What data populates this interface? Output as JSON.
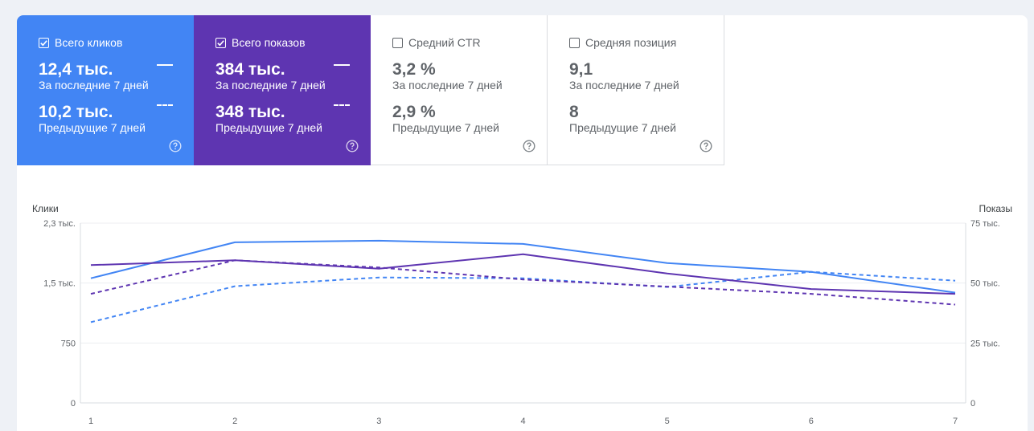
{
  "metrics": [
    {
      "id": "clicks",
      "label": "Всего кликов",
      "checked": true,
      "current": "12,4 тыс.",
      "current_period": "За последние 7 дней",
      "previous": "10,2 тыс.",
      "previous_period": "Предыдущие 7 дней",
      "color": "#4285f4"
    },
    {
      "id": "impressions",
      "label": "Всего показов",
      "checked": true,
      "current": "384 тыс.",
      "current_period": "За последние 7 дней",
      "previous": "348 тыс.",
      "previous_period": "Предыдущие 7 дней",
      "color": "#5e35b1"
    },
    {
      "id": "ctr",
      "label": "Средний CTR",
      "checked": false,
      "current": "3,2 %",
      "current_period": "За последние 7 дней",
      "previous": "2,9 %",
      "previous_period": "Предыдущие 7 дней"
    },
    {
      "id": "position",
      "label": "Средняя позиция",
      "checked": false,
      "current": "9,1",
      "current_period": "За последние 7 дней",
      "previous": "8",
      "previous_period": "Предыдущие 7 дней"
    }
  ],
  "chart_data": {
    "type": "line",
    "x": [
      1,
      2,
      3,
      4,
      5,
      6,
      7
    ],
    "left_axis": {
      "label": "Клики",
      "ticks": [
        "0",
        "750",
        "1,5 тыс.",
        "2,3 тыс."
      ],
      "ylim": [
        0,
        2250
      ]
    },
    "right_axis": {
      "label": "Показы",
      "ticks": [
        "0",
        "25 тыс.",
        "50 тыс.",
        "75 тыс."
      ],
      "ylim": [
        0,
        75000
      ]
    },
    "series": [
      {
        "axis": "left",
        "style": "solid",
        "color": "#4285f4",
        "values": [
          1560,
          2010,
          2030,
          1990,
          1750,
          1640,
          1380
        ]
      },
      {
        "axis": "left",
        "style": "dashed",
        "color": "#4285f4",
        "values": [
          1010,
          1460,
          1570,
          1560,
          1450,
          1640,
          1530
        ]
      },
      {
        "axis": "right",
        "style": "solid",
        "color": "#5e35b1",
        "values": [
          57500,
          59500,
          56000,
          62000,
          54000,
          47500,
          45500
        ]
      },
      {
        "axis": "right",
        "style": "dashed",
        "color": "#5e35b1",
        "values": [
          45500,
          59500,
          56500,
          51500,
          48500,
          45500,
          41000
        ]
      }
    ]
  }
}
